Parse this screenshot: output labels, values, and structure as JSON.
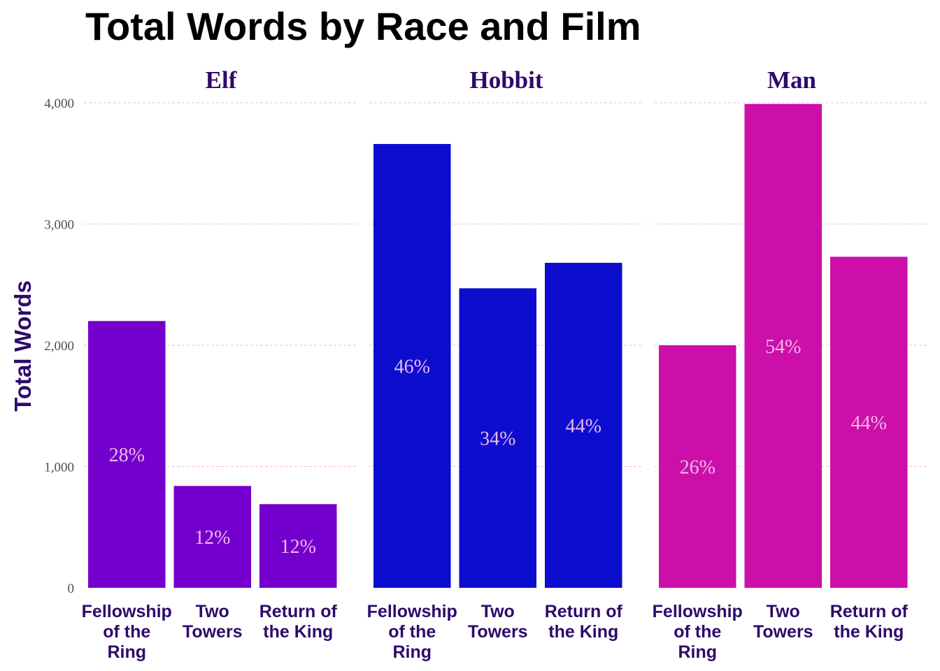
{
  "chart_data": {
    "type": "bar",
    "title": "Total Words by Race and Film",
    "ylabel": "Total Words",
    "xlabel": "",
    "ylim": [
      0,
      4000
    ],
    "y_ticks": [
      0,
      1000,
      2000,
      3000,
      4000
    ],
    "y_tick_labels": [
      "0",
      "1,000",
      "2,000",
      "3,000",
      "4,000"
    ],
    "grid": true,
    "categories": [
      [
        "Fellowship",
        "of the",
        "Ring"
      ],
      [
        "Two",
        "Towers"
      ],
      [
        "Return of",
        "the King"
      ]
    ],
    "panels": [
      {
        "name": "Elf",
        "color": "#7300cc",
        "values": [
          2200,
          840,
          690
        ],
        "labels": [
          "28%",
          "12%",
          "12%"
        ]
      },
      {
        "name": "Hobbit",
        "color": "#0c0dcf",
        "values": [
          3660,
          2470,
          2680
        ],
        "labels": [
          "46%",
          "34%",
          "44%"
        ]
      },
      {
        "name": "Man",
        "color": "#cc0fa8",
        "values": [
          2000,
          3990,
          2730
        ],
        "labels": [
          "26%",
          "54%",
          "44%"
        ]
      }
    ]
  },
  "colors": {
    "title": "#000000",
    "label_text": "#2e0a6b",
    "bar_label_text": "#f2b8ec",
    "grid": "#f3b7ee",
    "tick_text": "#4d4d4d"
  }
}
